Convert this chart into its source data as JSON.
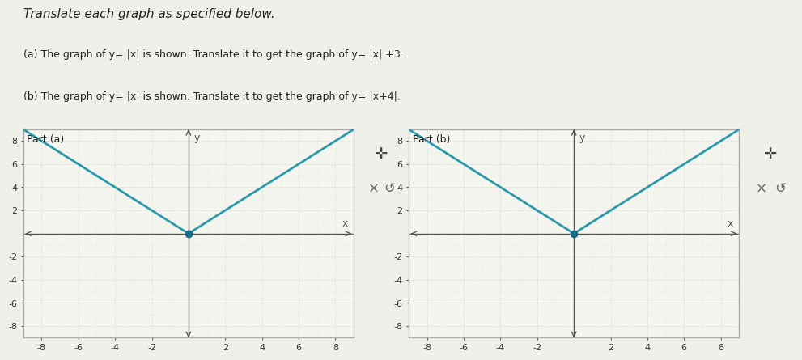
{
  "title_text": "Translate each graph as specified below.",
  "part_a_label": "Part (a)",
  "part_b_label": "Part (b)",
  "instruction_a": "(a) The graph of y= |x| is shown. Translate it to get the graph of y= |x| +3.",
  "instruction_b": "(b) The graph of y= |x| is shown. Translate it to get the graph of y= |x+4|.",
  "xlim": [
    -9,
    9
  ],
  "ylim": [
    -9,
    9
  ],
  "xticks": [
    -8,
    -6,
    -4,
    -2,
    2,
    4,
    6,
    8
  ],
  "yticks": [
    -8,
    -6,
    -4,
    -2,
    2,
    4,
    6,
    8
  ],
  "line_color": "#2a9aaa",
  "vertex_color": "#1a6b8a",
  "vertex_a": [
    0,
    0
  ],
  "vertex_b": [
    0,
    0
  ],
  "axis_color": "#555555",
  "grid_color": "#cccccc",
  "grid_minor_color": "#e0e0e0",
  "background_color": "#f5f5f0",
  "panel_bg": "#f0f0eb",
  "border_color": "#aaaaaa",
  "text_color": "#222222",
  "label_fontsize": 9,
  "tick_fontsize": 8,
  "title_fontsize": 11
}
